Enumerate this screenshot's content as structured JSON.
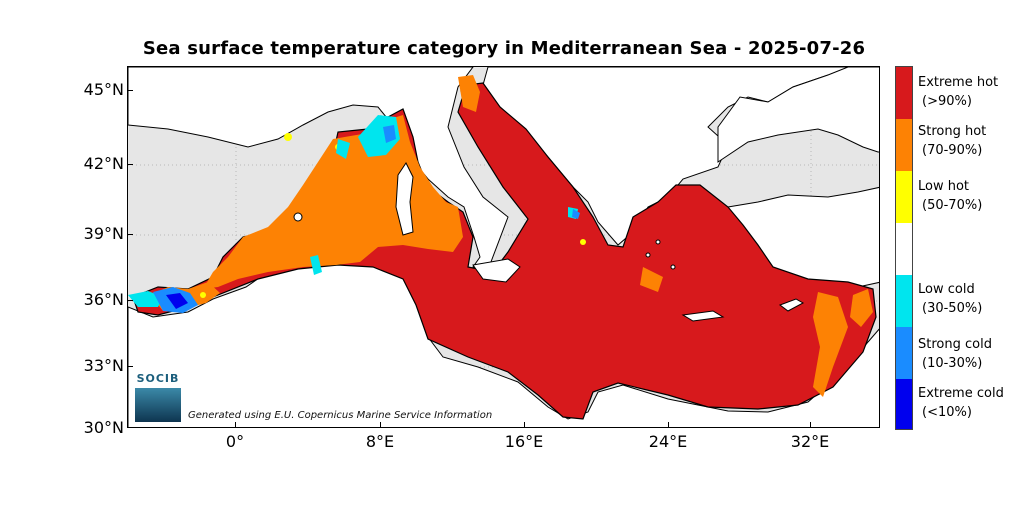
{
  "map": {
    "title": "Sea surface temperature category in Mediterranean Sea - 2025-07-26",
    "credit": "Generated using E.U. Copernicus Marine Service Information",
    "logo_text": "SOCIB",
    "lat_labels": [
      "45°N",
      "42°N",
      "39°N",
      "36°N",
      "33°N",
      "30°N"
    ],
    "lon_labels": [
      "0°",
      "8°E",
      "16°E",
      "24°E",
      "32°E"
    ],
    "colors": {
      "land": "#ffffff",
      "no_data": "#e6e6e6",
      "extreme_hot": "#d7191c",
      "strong_hot": "#fd8204",
      "low_hot": "#ffff00",
      "normal": "#ffffff",
      "low_cold": "#00e5ee",
      "strong_cold": "#1a8cff",
      "extreme_cold": "#0000ee"
    }
  },
  "legend": [
    {
      "line1": "Extreme hot",
      "line2": "(>90%)",
      "color": "#d7191c"
    },
    {
      "line1": "Strong hot",
      "line2": "(70-90%)",
      "color": "#fd8204"
    },
    {
      "line1": "Low hot",
      "line2": "(50-70%)",
      "color": "#ffff00"
    },
    {
      "line1": "",
      "line2": "",
      "color": "#ffffff"
    },
    {
      "line1": "Low cold",
      "line2": "(30-50%)",
      "color": "#00e5ee"
    },
    {
      "line1": "Strong cold",
      "line2": "(10-30%)",
      "color": "#1a8cff"
    },
    {
      "line1": "Extreme cold",
      "line2": "(<10%)",
      "color": "#0000ee"
    }
  ]
}
